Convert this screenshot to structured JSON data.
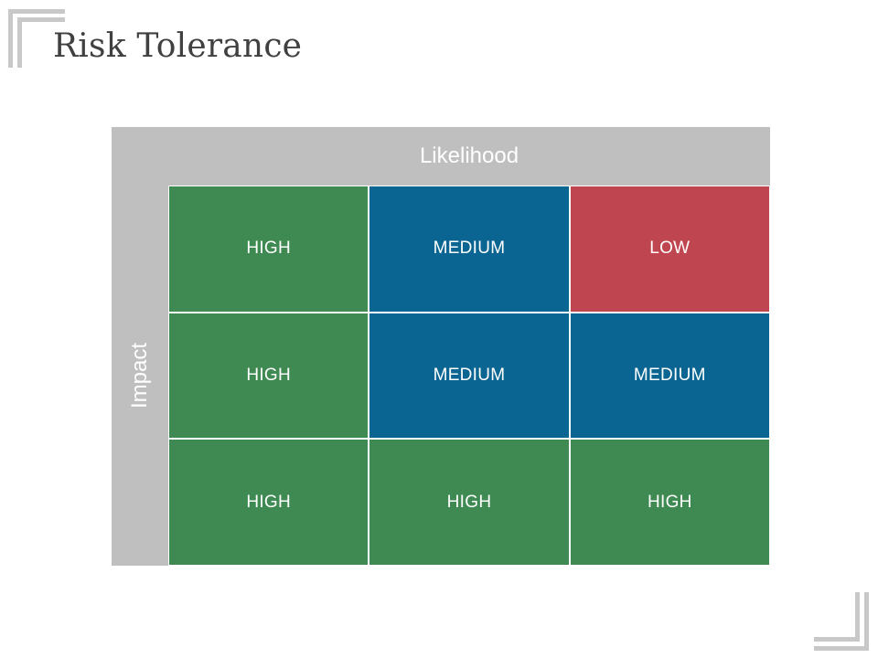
{
  "title": "Risk Tolerance",
  "matrix": {
    "x_axis_label": "Likelihood",
    "y_axis_label": "Impact",
    "colors": {
      "HIGH": "#3e8a52",
      "MEDIUM": "#0b6592",
      "LOW": "#bf4650",
      "axis_band": "#bfbfbf"
    },
    "rows": [
      [
        "HIGH",
        "MEDIUM",
        "LOW"
      ],
      [
        "HIGH",
        "MEDIUM",
        "MEDIUM"
      ],
      [
        "HIGH",
        "HIGH",
        "HIGH"
      ]
    ]
  }
}
